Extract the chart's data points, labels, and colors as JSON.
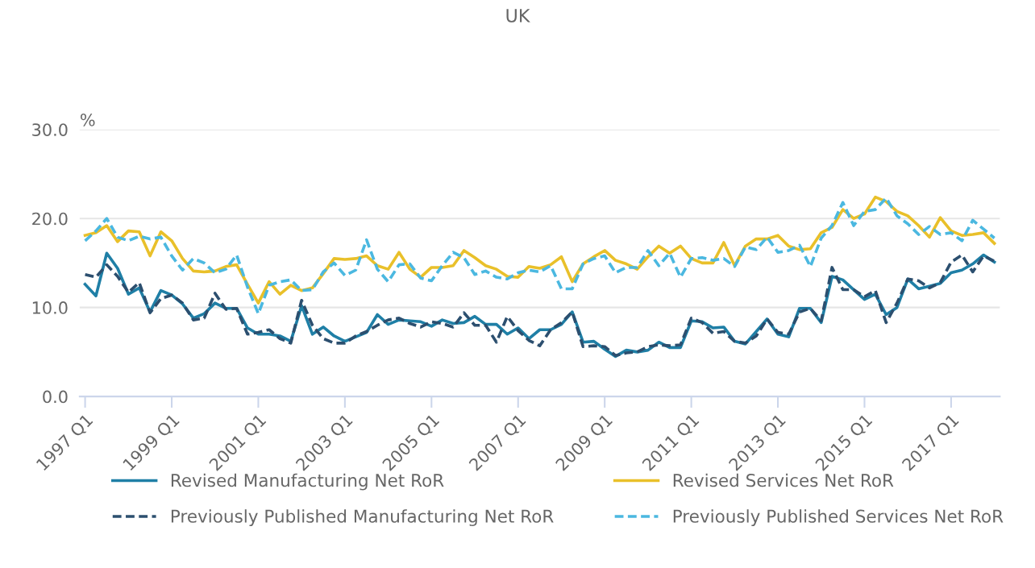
{
  "chart_data": {
    "type": "line",
    "title": "UK",
    "ylabel": "%",
    "categories": [
      "1997 Q1",
      null,
      null,
      null,
      null,
      null,
      null,
      null,
      "1999 Q1",
      null,
      null,
      null,
      null,
      null,
      null,
      null,
      "2001 Q1",
      null,
      null,
      null,
      null,
      null,
      null,
      null,
      "2003 Q1",
      null,
      null,
      null,
      null,
      null,
      null,
      null,
      "2005 Q1",
      null,
      null,
      null,
      null,
      null,
      null,
      null,
      "2007 Q1",
      null,
      null,
      null,
      null,
      null,
      null,
      null,
      "2009 Q1",
      null,
      null,
      null,
      null,
      null,
      null,
      null,
      "2011 Q1",
      null,
      null,
      null,
      null,
      null,
      null,
      null,
      "2013 Q1",
      null,
      null,
      null,
      null,
      null,
      null,
      null,
      "2015 Q1",
      null,
      null,
      null,
      null,
      null,
      null,
      null,
      "2017 Q1",
      null,
      null,
      null,
      null
    ],
    "series": [
      {
        "name": "Revised Manufacturing Net RoR",
        "color": "#1f7fa6",
        "line_style": "solid",
        "values": [
          12.6,
          11.3,
          16.1,
          14.4,
          11.5,
          12.2,
          9.5,
          11.9,
          11.4,
          10.4,
          8.8,
          9.3,
          10.5,
          9.9,
          9.9,
          7.7,
          7.0,
          7.0,
          6.8,
          6.2,
          10.2,
          7.0,
          7.8,
          6.8,
          6.2,
          6.7,
          7.2,
          9.2,
          8.1,
          8.6,
          8.5,
          8.4,
          7.9,
          8.6,
          8.2,
          8.3,
          9.0,
          8.1,
          8.1,
          7.0,
          7.7,
          6.5,
          7.5,
          7.5,
          8.1,
          9.5,
          6.1,
          6.2,
          5.3,
          4.5,
          5.2,
          5.0,
          5.2,
          6.1,
          5.5,
          5.5,
          8.5,
          8.4,
          7.7,
          7.8,
          6.2,
          5.9,
          7.3,
          8.7,
          7.0,
          6.7,
          9.9,
          9.9,
          8.3,
          13.5,
          13.1,
          12.0,
          10.9,
          11.5,
          9.2,
          10.0,
          13.2,
          12.1,
          12.4,
          12.7,
          13.9,
          14.2,
          14.9,
          15.9,
          15.1
        ]
      },
      {
        "name": "Revised Services Net RoR",
        "color": "#e9c02a",
        "line_style": "solid",
        "values": [
          18.1,
          18.4,
          19.2,
          17.4,
          18.6,
          18.5,
          15.8,
          18.5,
          17.5,
          15.5,
          14.1,
          14.0,
          14.1,
          14.6,
          14.8,
          12.6,
          10.5,
          12.9,
          11.5,
          12.5,
          11.9,
          12.2,
          13.8,
          15.5,
          15.4,
          15.5,
          15.8,
          14.7,
          14.3,
          16.2,
          14.3,
          13.4,
          14.5,
          14.5,
          14.7,
          16.4,
          15.6,
          14.7,
          14.3,
          13.5,
          13.4,
          14.6,
          14.4,
          14.8,
          15.7,
          12.9,
          14.9,
          15.7,
          16.4,
          15.3,
          14.9,
          14.3,
          15.7,
          16.9,
          16.1,
          16.9,
          15.5,
          15.0,
          15.0,
          17.3,
          14.7,
          16.9,
          17.7,
          17.7,
          18.1,
          16.9,
          16.5,
          16.6,
          18.4,
          19.0,
          21.0,
          20.0,
          20.5,
          22.4,
          21.9,
          20.8,
          20.3,
          19.2,
          17.9,
          20.1,
          18.6,
          18.1,
          18.2,
          18.4,
          17.2
        ]
      },
      {
        "name": "Previously Published Manufacturing Net RoR",
        "color": "#2c4f6f",
        "line_style": "dashed",
        "values": [
          13.7,
          13.4,
          14.8,
          13.5,
          11.7,
          12.8,
          9.4,
          11.0,
          11.4,
          10.5,
          8.6,
          8.8,
          11.6,
          9.8,
          9.9,
          7.0,
          7.2,
          7.5,
          6.5,
          6.0,
          10.8,
          8.0,
          6.5,
          6.0,
          6.0,
          6.8,
          7.3,
          8.0,
          8.6,
          8.8,
          8.2,
          7.8,
          8.4,
          8.2,
          7.8,
          9.4,
          8.0,
          8.0,
          6.1,
          9.0,
          7.4,
          6.3,
          5.7,
          7.5,
          8.3,
          9.5,
          5.6,
          5.7,
          5.6,
          4.6,
          4.9,
          5.0,
          5.6,
          5.8,
          5.7,
          5.8,
          8.8,
          8.3,
          7.1,
          7.3,
          6.2,
          6.0,
          6.8,
          8.7,
          7.2,
          7.0,
          9.5,
          9.9,
          8.5,
          14.5,
          12.0,
          12.0,
          11.2,
          11.9,
          8.3,
          10.5,
          13.2,
          13.0,
          12.2,
          12.8,
          15.1,
          15.9,
          14.0,
          15.8,
          15.2
        ]
      },
      {
        "name": "Previously Published Services Net RoR",
        "color": "#4bb8e0",
        "line_style": "dashed",
        "values": [
          17.5,
          18.6,
          20.0,
          17.9,
          17.5,
          18.0,
          17.7,
          17.9,
          15.8,
          14.2,
          15.5,
          15.0,
          13.9,
          14.3,
          15.9,
          12.3,
          9.3,
          12.5,
          12.9,
          13.1,
          11.9,
          12.0,
          14.0,
          15.0,
          13.6,
          14.2,
          17.6,
          14.3,
          12.9,
          14.8,
          14.9,
          13.3,
          13.0,
          14.7,
          16.2,
          15.6,
          13.7,
          14.1,
          13.4,
          13.2,
          13.9,
          14.2,
          14.0,
          14.7,
          12.1,
          12.1,
          14.9,
          15.5,
          15.8,
          13.9,
          14.5,
          14.5,
          16.4,
          14.7,
          16.1,
          13.4,
          15.5,
          15.6,
          15.3,
          15.5,
          14.6,
          16.8,
          16.5,
          17.9,
          16.2,
          16.4,
          17.0,
          14.6,
          17.8,
          19.2,
          21.8,
          19.2,
          20.8,
          21.0,
          22.3,
          20.3,
          19.4,
          18.2,
          19.1,
          18.2,
          18.4,
          17.5,
          19.8,
          18.8,
          17.8
        ]
      }
    ],
    "ylim": [
      0,
      30
    ],
    "yticks": [
      {
        "value": 0,
        "label": "0.0"
      },
      {
        "value": 10,
        "label": "10.0"
      },
      {
        "value": 20,
        "label": "20.0"
      },
      {
        "value": 30,
        "label": "30.0"
      }
    ],
    "grid": "y",
    "legend": "bottom",
    "marker": "none"
  }
}
